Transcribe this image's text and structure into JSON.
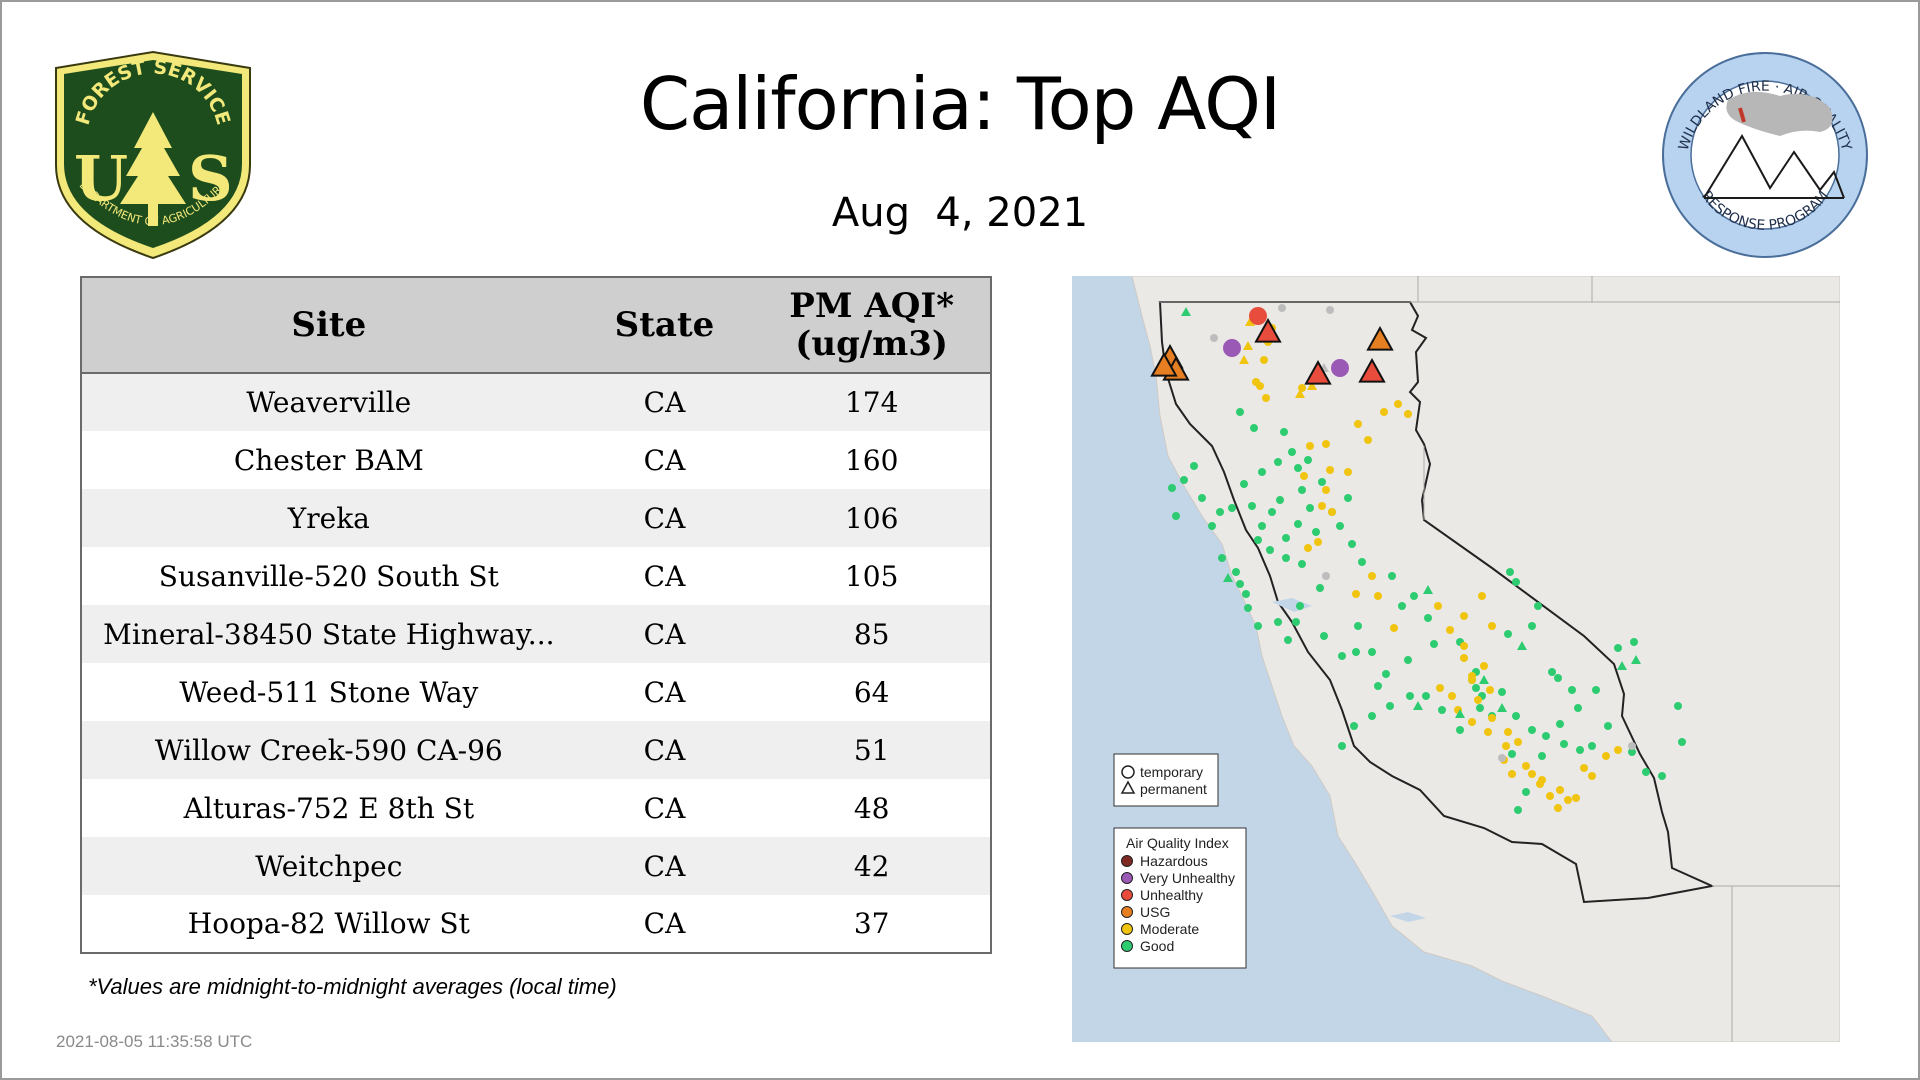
{
  "title": "California: Top AQI",
  "date": "Aug  4, 2021",
  "logos": {
    "forest_service": {
      "top_text": "FOREST SERVICE",
      "letters": "US",
      "bottom_text": "DEPARTMENT OF AGRICULTURE"
    },
    "wildland_fire": {
      "top_text": "WILDLAND FIRE · AIR QUALITY",
      "bottom_text": "RESPONSE PROGRAM"
    }
  },
  "table": {
    "headers": {
      "site": "Site",
      "state": "State",
      "aqi_line1": "PM AQI*",
      "aqi_line2": "(ug/m3)"
    },
    "rows": [
      {
        "site": "Weaverville",
        "state": "CA",
        "aqi": "174"
      },
      {
        "site": "Chester BAM",
        "state": "CA",
        "aqi": "160"
      },
      {
        "site": "Yreka",
        "state": "CA",
        "aqi": "106"
      },
      {
        "site": "Susanville-520 South St",
        "state": "CA",
        "aqi": "105"
      },
      {
        "site": "Mineral-38450 State Highway...",
        "state": "CA",
        "aqi": "85"
      },
      {
        "site": "Weed-511 Stone Way",
        "state": "CA",
        "aqi": "64"
      },
      {
        "site": "Willow Creek-590 CA-96",
        "state": "CA",
        "aqi": "51"
      },
      {
        "site": "Alturas-752 E 8th St",
        "state": "CA",
        "aqi": "48"
      },
      {
        "site": "Weitchpec",
        "state": "CA",
        "aqi": "42"
      },
      {
        "site": "Hoopa-82 Willow St",
        "state": "CA",
        "aqi": "37"
      }
    ]
  },
  "footnote": "*Values are midnight-to-midnight averages (local time)",
  "timestamp": "2021-08-05 11:35:58 UTC",
  "map": {
    "shape_legend": {
      "temporary": "temporary",
      "permanent": "permanent"
    },
    "aqi_legend": {
      "title": "Air Quality Index",
      "categories": [
        {
          "label": "Hazardous",
          "color": "#7e2a22"
        },
        {
          "label": "Very Unhealthy",
          "color": "#9b59b6"
        },
        {
          "label": "Unhealthy",
          "color": "#e74c3c"
        },
        {
          "label": "USG",
          "color": "#e67e22"
        },
        {
          "label": "Moderate",
          "color": "#f1c40f"
        },
        {
          "label": "Good",
          "color": "#2ecc71"
        }
      ]
    }
  }
}
